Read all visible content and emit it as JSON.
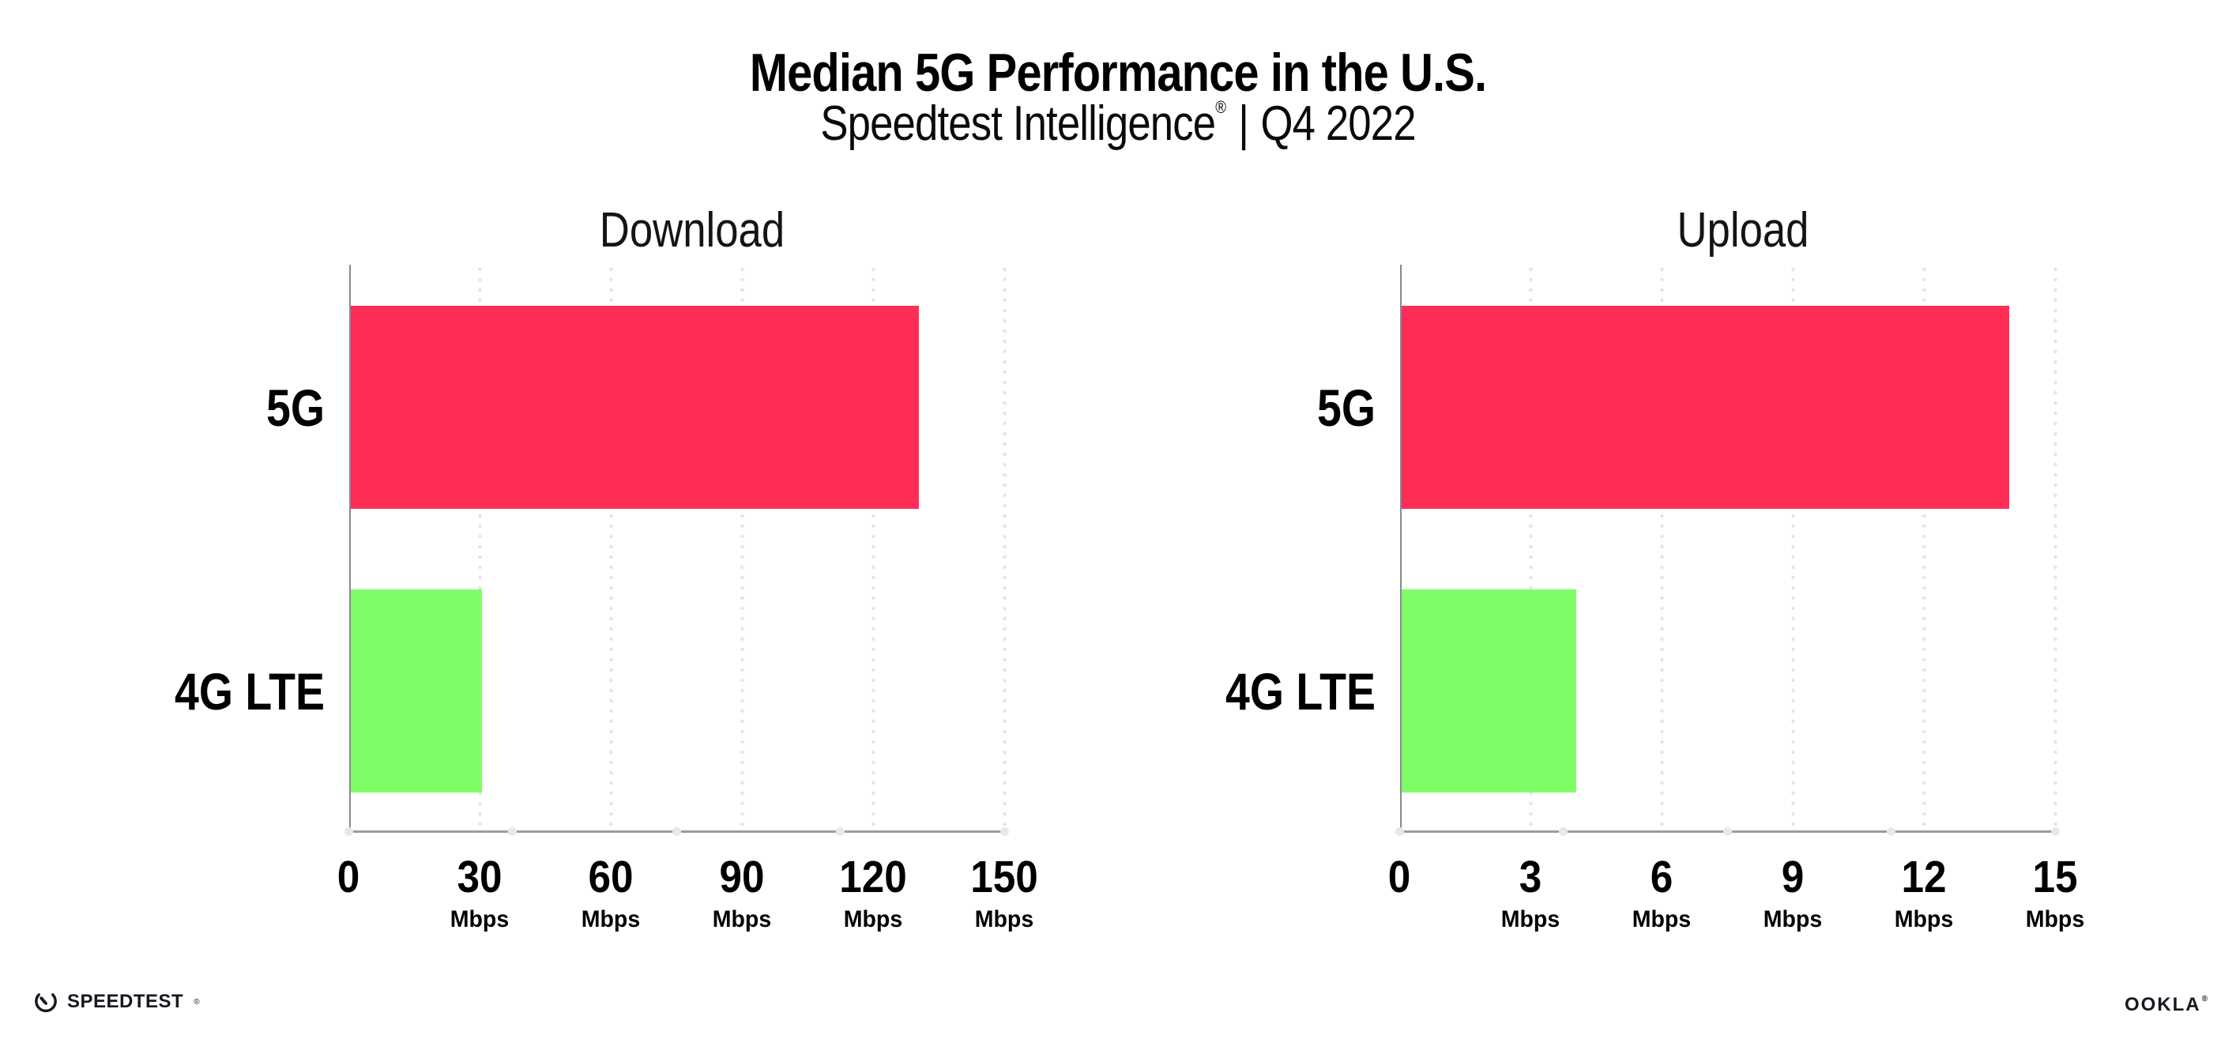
{
  "header": {
    "title": "Median 5G Performance in the U.S.",
    "subtitle": {
      "brand": "Speedtest Intelligence",
      "registered": "®",
      "divider": "|",
      "period": "Q4 2022"
    }
  },
  "chart_data": [
    {
      "type": "bar",
      "orientation": "horizontal",
      "title": "Download",
      "categories": [
        "5G",
        "4G LTE"
      ],
      "values": [
        130,
        30
      ],
      "unit": "Mbps",
      "xlim": [
        0,
        150
      ],
      "ticks": [
        0,
        30,
        60,
        90,
        120,
        150
      ],
      "bar_colors": [
        "#FF2E56",
        "#7FFD66"
      ],
      "grid": "dotted-vertical",
      "legend": "none"
    },
    {
      "type": "bar",
      "orientation": "horizontal",
      "title": "Upload",
      "categories": [
        "5G",
        "4G LTE"
      ],
      "values": [
        13.9,
        4
      ],
      "unit": "Mbps",
      "xlim": [
        0,
        15
      ],
      "ticks": [
        0,
        3,
        6,
        9,
        12,
        15
      ],
      "bar_colors": [
        "#FF2E56",
        "#7FFD66"
      ],
      "grid": "dotted-vertical",
      "legend": "none"
    }
  ],
  "footer": {
    "speedtest_label": "SPEEDTEST",
    "speedtest_registered": "®",
    "ookla_label": "OOKLA",
    "ookla_registered": "®"
  },
  "colors": {
    "bar_5g": "#FF2E56",
    "bar_4g_lte": "#7FFD66",
    "gridline_dots": "#E3E3EF",
    "x_axis_line": "#9B9BA3",
    "y_axis_line": "#8A8A90",
    "text": "#000000"
  }
}
